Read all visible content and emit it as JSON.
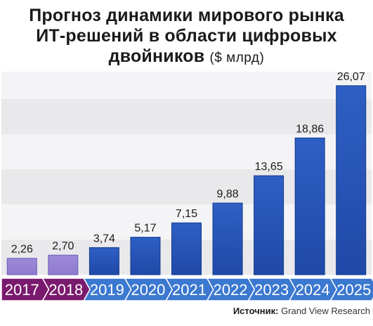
{
  "title": {
    "line1": "Прогноз динамики мирового рынка",
    "line2": "ИТ-решений в области цифровых",
    "line3": "двойников",
    "unit": "($ млрд)"
  },
  "source": {
    "label": "Источник:",
    "value": "Grand View Research"
  },
  "colors": {
    "historical_bar": "#8f7bd0",
    "forecast_bar": "#1f49a8",
    "historical_arrow": "#7a1a6e",
    "forecast_arrow": "#3b78d0",
    "grid_band": "#e9e9ec"
  },
  "chart_data": {
    "type": "bar",
    "categories": [
      "2017",
      "2018",
      "2019",
      "2020",
      "2021",
      "2022",
      "2023",
      "2024",
      "2025"
    ],
    "values": [
      2.26,
      2.7,
      3.74,
      5.17,
      7.15,
      9.88,
      13.65,
      18.86,
      26.07
    ],
    "value_labels": [
      "2,26",
      "2,70",
      "3,74",
      "5,17",
      "7,15",
      "9,88",
      "13,65",
      "18,86",
      "26,07"
    ],
    "historical_count": 2,
    "title": "Прогноз динамики мирового рынка ИТ-решений в области цифровых двойников",
    "ylabel": "$ млрд",
    "ylim": [
      0,
      28
    ],
    "grid": true,
    "legend": "none"
  }
}
